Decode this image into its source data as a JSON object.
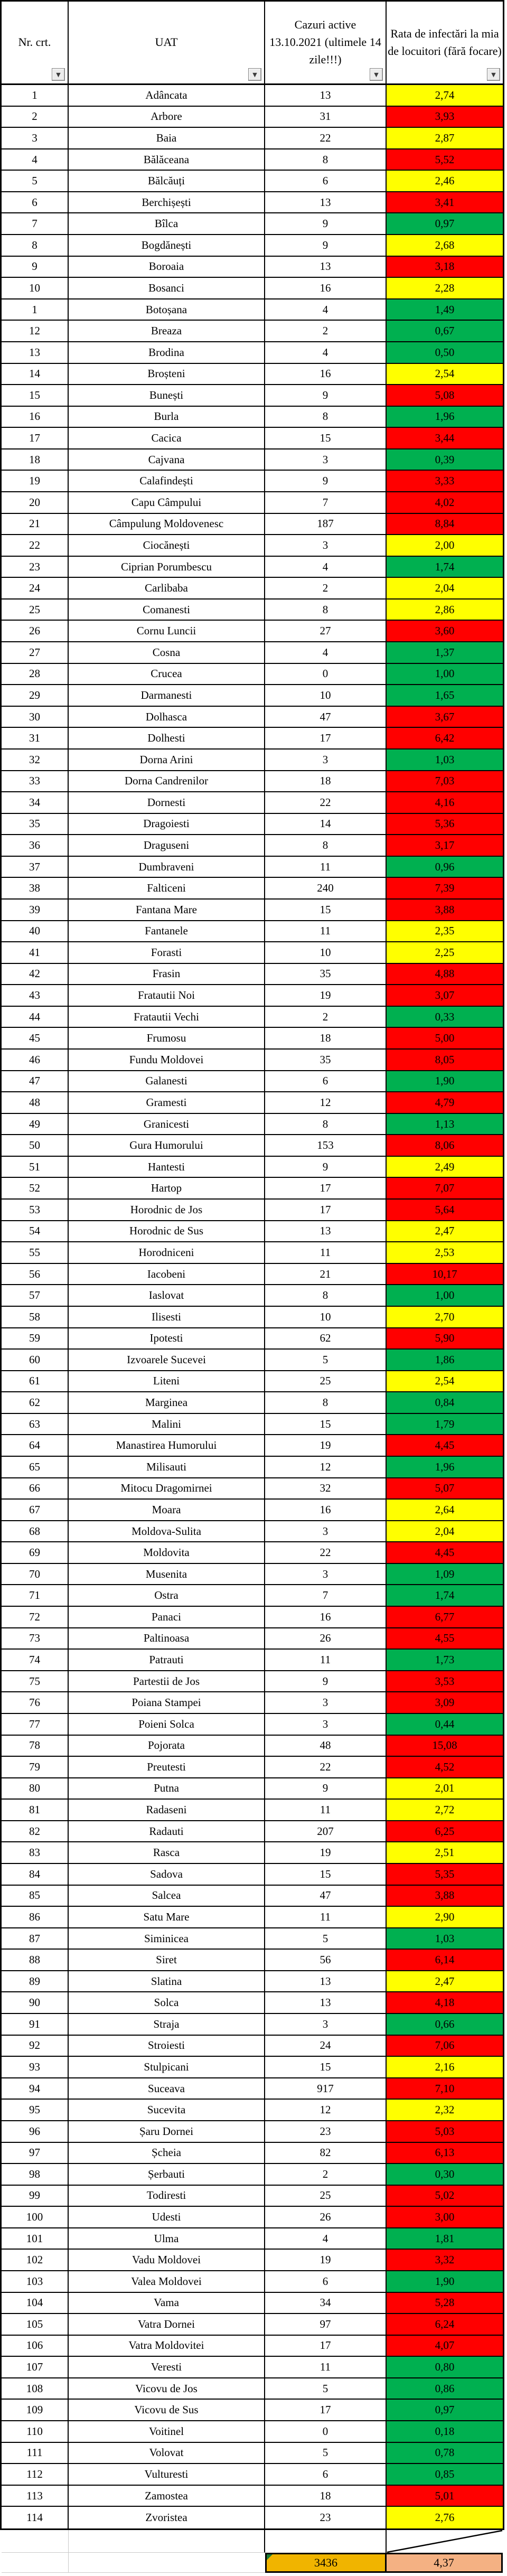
{
  "header": {
    "columns": [
      {
        "label": "Nr. crt."
      },
      {
        "label": "UAT"
      },
      {
        "label": "Cazuri active 13.10.2021 (ultimele 14 zile!!!)"
      },
      {
        "label": "Rata de infectări la mia de locuitori (fără focare)"
      }
    ],
    "filter_icon": "▼"
  },
  "colors": {
    "red": "#ff0000",
    "yellow": "#ffff00",
    "green": "#00b050",
    "total_cases_bg": "#f0b400",
    "total_rate_bg": "#f4b183",
    "grid_black": "#000000",
    "light_gridline": "#c9c9c9",
    "corner_flag_green": "#1e7b34"
  },
  "rows": [
    {
      "nr": "1",
      "uat": "Adâncata",
      "cazuri": "13",
      "rata": "2,74",
      "level": "yellow"
    },
    {
      "nr": "2",
      "uat": "Arbore",
      "cazuri": "31",
      "rata": "3,93",
      "level": "red"
    },
    {
      "nr": "3",
      "uat": "Baia",
      "cazuri": "22",
      "rata": "2,87",
      "level": "yellow"
    },
    {
      "nr": "4",
      "uat": "Bălăceana",
      "cazuri": "8",
      "rata": "5,52",
      "level": "red"
    },
    {
      "nr": "5",
      "uat": "Bălcăuți",
      "cazuri": "6",
      "rata": "2,46",
      "level": "yellow"
    },
    {
      "nr": "6",
      "uat": "Berchișești",
      "cazuri": "13",
      "rata": "3,41",
      "level": "red"
    },
    {
      "nr": "7",
      "uat": "Bîlca",
      "cazuri": "9",
      "rata": "0,97",
      "level": "green"
    },
    {
      "nr": "8",
      "uat": "Bogdănești",
      "cazuri": "9",
      "rata": "2,68",
      "level": "yellow"
    },
    {
      "nr": "9",
      "uat": "Boroaia",
      "cazuri": "13",
      "rata": "3,18",
      "level": "red"
    },
    {
      "nr": "10",
      "uat": "Bosanci",
      "cazuri": "16",
      "rata": "2,28",
      "level": "yellow"
    },
    {
      "nr": "1",
      "uat": "Botoșana",
      "cazuri": "4",
      "rata": "1,49",
      "level": "green"
    },
    {
      "nr": "12",
      "uat": "Breaza",
      "cazuri": "2",
      "rata": "0,67",
      "level": "green"
    },
    {
      "nr": "13",
      "uat": "Brodina",
      "cazuri": "4",
      "rata": "0,50",
      "level": "green"
    },
    {
      "nr": "14",
      "uat": "Broșteni",
      "cazuri": "16",
      "rata": "2,54",
      "level": "yellow"
    },
    {
      "nr": "15",
      "uat": "Bunești",
      "cazuri": "9",
      "rata": "5,08",
      "level": "red"
    },
    {
      "nr": "16",
      "uat": "Burla",
      "cazuri": "8",
      "rata": "1,96",
      "level": "green"
    },
    {
      "nr": "17",
      "uat": "Cacica",
      "cazuri": "15",
      "rata": "3,44",
      "level": "red"
    },
    {
      "nr": "18",
      "uat": "Cajvana",
      "cazuri": "3",
      "rata": "0,39",
      "level": "green"
    },
    {
      "nr": "19",
      "uat": "Calafindești",
      "cazuri": "9",
      "rata": "3,33",
      "level": "red"
    },
    {
      "nr": "20",
      "uat": "Capu Câmpului",
      "cazuri": "7",
      "rata": "4,02",
      "level": "red"
    },
    {
      "nr": "21",
      "uat": "Câmpulung Moldovenesc",
      "cazuri": "187",
      "rata": "8,84",
      "level": "red"
    },
    {
      "nr": "22",
      "uat": "Ciocănești",
      "cazuri": "3",
      "rata": "2,00",
      "level": "yellow"
    },
    {
      "nr": "23",
      "uat": "Ciprian Porumbescu",
      "cazuri": "4",
      "rata": "1,74",
      "level": "green"
    },
    {
      "nr": "24",
      "uat": "Carlibaba",
      "cazuri": "2",
      "rata": "2,04",
      "level": "yellow"
    },
    {
      "nr": "25",
      "uat": "Comanesti",
      "cazuri": "8",
      "rata": "2,86",
      "level": "yellow"
    },
    {
      "nr": "26",
      "uat": "Cornu Luncii",
      "cazuri": "27",
      "rata": "3,60",
      "level": "red"
    },
    {
      "nr": "27",
      "uat": "Cosna",
      "cazuri": "4",
      "rata": "1,37",
      "level": "green"
    },
    {
      "nr": "28",
      "uat": "Crucea",
      "cazuri": "0",
      "rata": "1,00",
      "level": "green"
    },
    {
      "nr": "29",
      "uat": "Darmanesti",
      "cazuri": "10",
      "rata": "1,65",
      "level": "green"
    },
    {
      "nr": "30",
      "uat": "Dolhasca",
      "cazuri": "47",
      "rata": "3,67",
      "level": "red"
    },
    {
      "nr": "31",
      "uat": "Dolhesti",
      "cazuri": "17",
      "rata": "6,42",
      "level": "red"
    },
    {
      "nr": "32",
      "uat": "Dorna Arini",
      "cazuri": "3",
      "rata": "1,03",
      "level": "green"
    },
    {
      "nr": "33",
      "uat": "Dorna Candrenilor",
      "cazuri": "18",
      "rata": "7,03",
      "level": "red"
    },
    {
      "nr": "34",
      "uat": "Dornesti",
      "cazuri": "22",
      "rata": "4,16",
      "level": "red"
    },
    {
      "nr": "35",
      "uat": "Dragoiesti",
      "cazuri": "14",
      "rata": "5,36",
      "level": "red"
    },
    {
      "nr": "36",
      "uat": "Draguseni",
      "cazuri": "8",
      "rata": "3,17",
      "level": "red"
    },
    {
      "nr": "37",
      "uat": "Dumbraveni",
      "cazuri": "11",
      "rata": "0,96",
      "level": "green"
    },
    {
      "nr": "38",
      "uat": "Falticeni",
      "cazuri": "240",
      "rata": "7,39",
      "level": "red"
    },
    {
      "nr": "39",
      "uat": "Fantana Mare",
      "cazuri": "15",
      "rata": "3,88",
      "level": "red"
    },
    {
      "nr": "40",
      "uat": "Fantanele",
      "cazuri": "11",
      "rata": "2,35",
      "level": "yellow"
    },
    {
      "nr": "41",
      "uat": "Forasti",
      "cazuri": "10",
      "rata": "2,25",
      "level": "yellow"
    },
    {
      "nr": "42",
      "uat": "Frasin",
      "cazuri": "35",
      "rata": "4,88",
      "level": "red"
    },
    {
      "nr": "43",
      "uat": "Fratautii Noi",
      "cazuri": "19",
      "rata": "3,07",
      "level": "red"
    },
    {
      "nr": "44",
      "uat": "Fratautii Vechi",
      "cazuri": "2",
      "rata": "0,33",
      "level": "green"
    },
    {
      "nr": "45",
      "uat": "Frumosu",
      "cazuri": "18",
      "rata": "5,00",
      "level": "red"
    },
    {
      "nr": "46",
      "uat": "Fundu Moldovei",
      "cazuri": "35",
      "rata": "8,05",
      "level": "red"
    },
    {
      "nr": "47",
      "uat": "Galanesti",
      "cazuri": "6",
      "rata": "1,90",
      "level": "green"
    },
    {
      "nr": "48",
      "uat": "Gramesti",
      "cazuri": "12",
      "rata": "4,79",
      "level": "red"
    },
    {
      "nr": "49",
      "uat": "Granicesti",
      "cazuri": "8",
      "rata": "1,13",
      "level": "green"
    },
    {
      "nr": "50",
      "uat": "Gura Humorului",
      "cazuri": "153",
      "rata": "8,06",
      "level": "red"
    },
    {
      "nr": "51",
      "uat": "Hantesti",
      "cazuri": "9",
      "rata": "2,49",
      "level": "yellow"
    },
    {
      "nr": "52",
      "uat": "Hartop",
      "cazuri": "17",
      "rata": "7,07",
      "level": "red"
    },
    {
      "nr": "53",
      "uat": "Horodnic de Jos",
      "cazuri": "17",
      "rata": "5,64",
      "level": "red"
    },
    {
      "nr": "54",
      "uat": "Horodnic de Sus",
      "cazuri": "13",
      "rata": "2,47",
      "level": "yellow"
    },
    {
      "nr": "55",
      "uat": "Horodniceni",
      "cazuri": "11",
      "rata": "2,53",
      "level": "yellow"
    },
    {
      "nr": "56",
      "uat": "Iacobeni",
      "cazuri": "21",
      "rata": "10,17",
      "level": "red"
    },
    {
      "nr": "57",
      "uat": "Iaslovat",
      "cazuri": "8",
      "rata": "1,00",
      "level": "green"
    },
    {
      "nr": "58",
      "uat": "Ilisesti",
      "cazuri": "10",
      "rata": "2,70",
      "level": "yellow"
    },
    {
      "nr": "59",
      "uat": "Ipotesti",
      "cazuri": "62",
      "rata": "5,90",
      "level": "red"
    },
    {
      "nr": "60",
      "uat": "Izvoarele Sucevei",
      "cazuri": "5",
      "rata": "1,86",
      "level": "green"
    },
    {
      "nr": "61",
      "uat": "Liteni",
      "cazuri": "25",
      "rata": "2,54",
      "level": "yellow"
    },
    {
      "nr": "62",
      "uat": "Marginea",
      "cazuri": "8",
      "rata": "0,84",
      "level": "green"
    },
    {
      "nr": "63",
      "uat": "Malini",
      "cazuri": "15",
      "rata": "1,79",
      "level": "green"
    },
    {
      "nr": "64",
      "uat": "Manastirea Humorului",
      "cazuri": "19",
      "rata": "4,45",
      "level": "red"
    },
    {
      "nr": "65",
      "uat": "Milisauti",
      "cazuri": "12",
      "rata": "1,96",
      "level": "green"
    },
    {
      "nr": "66",
      "uat": "Mitocu Dragomirnei",
      "cazuri": "32",
      "rata": "5,07",
      "level": "red"
    },
    {
      "nr": "67",
      "uat": "Moara",
      "cazuri": "16",
      "rata": "2,64",
      "level": "yellow"
    },
    {
      "nr": "68",
      "uat": "Moldova-Sulita",
      "cazuri": "3",
      "rata": "2,04",
      "level": "yellow"
    },
    {
      "nr": "69",
      "uat": "Moldovita",
      "cazuri": "22",
      "rata": "4,45",
      "level": "red"
    },
    {
      "nr": "70",
      "uat": "Musenita",
      "cazuri": "3",
      "rata": "1,09",
      "level": "green"
    },
    {
      "nr": "71",
      "uat": "Ostra",
      "cazuri": "7",
      "rata": "1,74",
      "level": "green"
    },
    {
      "nr": "72",
      "uat": "Panaci",
      "cazuri": "16",
      "rata": "6,77",
      "level": "red"
    },
    {
      "nr": "73",
      "uat": "Paltinoasa",
      "cazuri": "26",
      "rata": "4,55",
      "level": "red"
    },
    {
      "nr": "74",
      "uat": "Patrauti",
      "cazuri": "11",
      "rata": "1,73",
      "level": "green"
    },
    {
      "nr": "75",
      "uat": "Partestii de Jos",
      "cazuri": "9",
      "rata": "3,53",
      "level": "red"
    },
    {
      "nr": "76",
      "uat": "Poiana Stampei",
      "cazuri": "3",
      "rata": "3,09",
      "level": "red"
    },
    {
      "nr": "77",
      "uat": "Poieni Solca",
      "cazuri": "3",
      "rata": "0,44",
      "level": "green"
    },
    {
      "nr": "78",
      "uat": "Pojorata",
      "cazuri": "48",
      "rata": "15,08",
      "level": "red"
    },
    {
      "nr": "79",
      "uat": "Preutesti",
      "cazuri": "22",
      "rata": "4,52",
      "level": "red"
    },
    {
      "nr": "80",
      "uat": "Putna",
      "cazuri": "9",
      "rata": "2,01",
      "level": "yellow"
    },
    {
      "nr": "81",
      "uat": "Radaseni",
      "cazuri": "11",
      "rata": "2,72",
      "level": "yellow"
    },
    {
      "nr": "82",
      "uat": "Radauti",
      "cazuri": "207",
      "rata": "6,25",
      "level": "red"
    },
    {
      "nr": "83",
      "uat": "Rasca",
      "cazuri": "19",
      "rata": "2,51",
      "level": "yellow"
    },
    {
      "nr": "84",
      "uat": "Sadova",
      "cazuri": "15",
      "rata": "5,35",
      "level": "red"
    },
    {
      "nr": "85",
      "uat": "Salcea",
      "cazuri": "47",
      "rata": "3,88",
      "level": "red"
    },
    {
      "nr": "86",
      "uat": "Satu Mare",
      "cazuri": "11",
      "rata": "2,90",
      "level": "yellow"
    },
    {
      "nr": "87",
      "uat": "Siminicea",
      "cazuri": "5",
      "rata": "1,03",
      "level": "green"
    },
    {
      "nr": "88",
      "uat": "Siret",
      "cazuri": "56",
      "rata": "6,14",
      "level": "red"
    },
    {
      "nr": "89",
      "uat": "Slatina",
      "cazuri": "13",
      "rata": "2,47",
      "level": "yellow"
    },
    {
      "nr": "90",
      "uat": "Solca",
      "cazuri": "13",
      "rata": "4,18",
      "level": "red"
    },
    {
      "nr": "91",
      "uat": "Straja",
      "cazuri": "3",
      "rata": "0,66",
      "level": "green"
    },
    {
      "nr": "92",
      "uat": "Stroiesti",
      "cazuri": "24",
      "rata": "7,06",
      "level": "red"
    },
    {
      "nr": "93",
      "uat": "Stulpicani",
      "cazuri": "15",
      "rata": "2,16",
      "level": "yellow"
    },
    {
      "nr": "94",
      "uat": "Suceava",
      "cazuri": "917",
      "rata": "7,10",
      "level": "red"
    },
    {
      "nr": "95",
      "uat": "Sucevita",
      "cazuri": "12",
      "rata": "2,32",
      "level": "yellow"
    },
    {
      "nr": "96",
      "uat": "Șaru Dornei",
      "cazuri": "23",
      "rata": "5,03",
      "level": "red"
    },
    {
      "nr": "97",
      "uat": "Șcheia",
      "cazuri": "82",
      "rata": "6,13",
      "level": "red"
    },
    {
      "nr": "98",
      "uat": "Șerbauti",
      "cazuri": "2",
      "rata": "0,30",
      "level": "green"
    },
    {
      "nr": "99",
      "uat": "Todiresti",
      "cazuri": "25",
      "rata": "5,02",
      "level": "red"
    },
    {
      "nr": "100",
      "uat": "Udesti",
      "cazuri": "26",
      "rata": "3,00",
      "level": "red"
    },
    {
      "nr": "101",
      "uat": "Ulma",
      "cazuri": "4",
      "rata": "1,81",
      "level": "green"
    },
    {
      "nr": "102",
      "uat": "Vadu Moldovei",
      "cazuri": "19",
      "rata": "3,32",
      "level": "red"
    },
    {
      "nr": "103",
      "uat": "Valea Moldovei",
      "cazuri": "6",
      "rata": "1,90",
      "level": "green"
    },
    {
      "nr": "104",
      "uat": "Vama",
      "cazuri": "34",
      "rata": "5,28",
      "level": "red"
    },
    {
      "nr": "105",
      "uat": "Vatra Dornei",
      "cazuri": "97",
      "rata": "6,24",
      "level": "red"
    },
    {
      "nr": "106",
      "uat": "Vatra Moldovitei",
      "cazuri": "17",
      "rata": "4,07",
      "level": "red"
    },
    {
      "nr": "107",
      "uat": "Veresti",
      "cazuri": "11",
      "rata": "0,80",
      "level": "green"
    },
    {
      "nr": "108",
      "uat": "Vicovu de Jos",
      "cazuri": "5",
      "rata": "0,86",
      "level": "green"
    },
    {
      "nr": "109",
      "uat": "Vicovu de Sus",
      "cazuri": "17",
      "rata": "0,97",
      "level": "green"
    },
    {
      "nr": "110",
      "uat": "Voitinel",
      "cazuri": "0",
      "rata": "0,18",
      "level": "green"
    },
    {
      "nr": "111",
      "uat": "Volovat",
      "cazuri": "5",
      "rata": "0,78",
      "level": "green"
    },
    {
      "nr": "112",
      "uat": "Vulturesti",
      "cazuri": "6",
      "rata": "0,85",
      "level": "green"
    },
    {
      "nr": "113",
      "uat": "Zamostea",
      "cazuri": "18",
      "rata": "5,01",
      "level": "red"
    },
    {
      "nr": "114",
      "uat": "Zvoristea",
      "cazuri": "23",
      "rata": "2,76",
      "level": "yellow"
    }
  ],
  "totals": {
    "cazuri": "3436",
    "rata": "4,37"
  }
}
